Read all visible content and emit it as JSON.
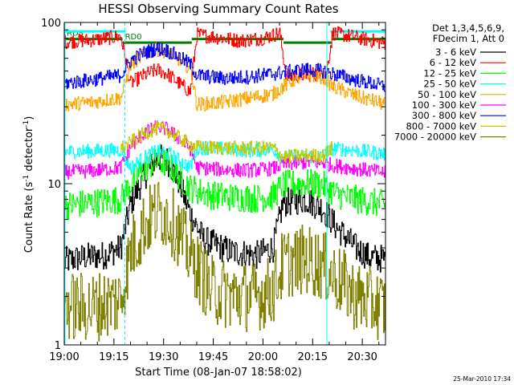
{
  "chart_data": {
    "type": "line",
    "title": "HESSI Observing Summary Count Rates",
    "xlabel": "Start Time (08-Jan-07 18:58:02)",
    "ylabel_main": "Count Rate (s",
    "ylabel_sup1": "-1",
    "ylabel_mid": " detector",
    "ylabel_sup2": "-1",
    "ylabel_end": ")",
    "y_scale": "log",
    "xlim_minutes": [
      0,
      97
    ],
    "ylim": [
      1,
      100
    ],
    "x_tick_labels": [
      "19:00",
      "19:15",
      "19:30",
      "19:45",
      "20:00",
      "20:15",
      "20:30"
    ],
    "x_tick_minutes": [
      0,
      15,
      30,
      45,
      60,
      75,
      90
    ],
    "y_tick_labels": [
      "1",
      "10",
      "100"
    ],
    "y_tick_values": [
      1,
      10,
      100
    ],
    "legend_header": [
      "Det 1,3,4,5,6,9,",
      "FDecim 1, Att 0"
    ],
    "legend_position": "right",
    "flags": [
      {
        "label": "RD0",
        "color": "#008000",
        "level": 75,
        "segments": [
          [
            17.6,
            38.5
          ],
          [
            66.2,
            80.7
          ]
        ]
      },
      {
        "label": "RDS",
        "color": "#008000",
        "level": 79,
        "segments": [
          [
            0,
            17.6
          ],
          [
            38.5,
            66.2
          ],
          [
            80.7,
            97
          ]
        ]
      },
      {
        "label": "",
        "color": "#00ffff",
        "level": 88,
        "segments": [
          [
            0,
            18.5
          ],
          [
            80.4,
            97
          ]
        ]
      }
    ],
    "vertical_markers": {
      "solid": [
        0.2,
        79.3
      ],
      "dashed": [
        18.3,
        97
      ]
    },
    "series": [
      {
        "name": "3 - 6 keV",
        "color": "#000000",
        "values": [
          [
            0,
            3.3
          ],
          [
            6,
            3.5
          ],
          [
            12,
            3.6
          ],
          [
            17,
            4.0
          ],
          [
            20,
            7.5
          ],
          [
            24,
            11
          ],
          [
            28,
            14.5
          ],
          [
            31,
            14
          ],
          [
            34,
            11
          ],
          [
            38,
            6.5
          ],
          [
            42,
            4.5
          ],
          [
            50,
            3.8
          ],
          [
            58,
            3.6
          ],
          [
            63,
            4.0
          ],
          [
            66,
            7.6
          ],
          [
            73,
            8
          ],
          [
            78,
            7
          ],
          [
            82,
            5.4
          ],
          [
            88,
            4
          ],
          [
            92,
            3.5
          ],
          [
            97,
            3.4
          ]
        ]
      },
      {
        "name": "6 - 12 keV",
        "color": "#ff0000",
        "values": [
          [
            0,
            76
          ],
          [
            9,
            78
          ],
          [
            17,
            82
          ],
          [
            20,
            42
          ],
          [
            24,
            47
          ],
          [
            28,
            51
          ],
          [
            31,
            48
          ],
          [
            34,
            43
          ],
          [
            38,
            37
          ],
          [
            40,
            84
          ],
          [
            46,
            81
          ],
          [
            53,
            77
          ],
          [
            60,
            80
          ],
          [
            65,
            86
          ],
          [
            67,
            46
          ],
          [
            75,
            48
          ],
          [
            79,
            47
          ],
          [
            81,
            86
          ],
          [
            88,
            81
          ],
          [
            97,
            74
          ]
        ]
      },
      {
        "name": "12 - 25 keV",
        "color": "#00ff00",
        "values": [
          [
            0,
            7.3
          ],
          [
            8,
            7.6
          ],
          [
            17,
            8.0
          ],
          [
            20,
            10
          ],
          [
            24,
            12.3
          ],
          [
            28,
            13.8
          ],
          [
            31,
            13.3
          ],
          [
            34,
            11.5
          ],
          [
            38,
            9.4
          ],
          [
            44,
            8.5
          ],
          [
            52,
            8.2
          ],
          [
            58,
            8.1
          ],
          [
            63,
            8.4
          ],
          [
            66,
            9.8
          ],
          [
            73,
            10.1
          ],
          [
            78,
            9.8
          ],
          [
            82,
            8.6
          ],
          [
            88,
            8
          ],
          [
            97,
            7.4
          ]
        ]
      },
      {
        "name": "25 - 50 keV",
        "color": "#00ffff",
        "values": [
          [
            0,
            15.8
          ],
          [
            8,
            15.9
          ],
          [
            17,
            16.2
          ],
          [
            20,
            12.5
          ],
          [
            24,
            14.5
          ],
          [
            28,
            16
          ],
          [
            31,
            15.5
          ],
          [
            34,
            14.2
          ],
          [
            38,
            12.6
          ],
          [
            40,
            16.8
          ],
          [
            48,
            16.4
          ],
          [
            56,
            16.1
          ],
          [
            63,
            16.4
          ],
          [
            66,
            14.5
          ],
          [
            73,
            14.8
          ],
          [
            78,
            14.7
          ],
          [
            81,
            16.5
          ],
          [
            88,
            16.1
          ],
          [
            97,
            15.3
          ]
        ]
      },
      {
        "name": "50 - 100 keV",
        "color": "#ffa500",
        "values": [
          [
            0,
            31
          ],
          [
            8,
            32
          ],
          [
            17,
            34
          ],
          [
            20,
            55
          ],
          [
            24,
            63
          ],
          [
            28,
            68
          ],
          [
            31,
            66
          ],
          [
            34,
            60
          ],
          [
            38,
            52
          ],
          [
            40,
            31
          ],
          [
            48,
            32
          ],
          [
            56,
            34
          ],
          [
            63,
            36
          ],
          [
            66,
            40
          ],
          [
            70,
            45
          ],
          [
            74,
            47
          ],
          [
            78,
            46
          ],
          [
            81,
            40
          ],
          [
            88,
            35
          ],
          [
            97,
            31
          ]
        ]
      },
      {
        "name": "100 - 300 keV",
        "color": "#ff00ff",
        "values": [
          [
            0,
            11.8
          ],
          [
            8,
            12
          ],
          [
            17,
            12.6
          ],
          [
            20,
            17
          ],
          [
            24,
            20.5
          ],
          [
            28,
            22.5
          ],
          [
            31,
            21.8
          ],
          [
            34,
            19.5
          ],
          [
            38,
            16.5
          ],
          [
            40,
            12.6
          ],
          [
            48,
            12.2
          ],
          [
            56,
            12.1
          ],
          [
            63,
            12.4
          ],
          [
            66,
            13.2
          ],
          [
            73,
            13.6
          ],
          [
            78,
            13.5
          ],
          [
            81,
            13
          ],
          [
            88,
            12.4
          ],
          [
            97,
            11.7
          ]
        ]
      },
      {
        "name": "300 - 800 keV",
        "color": "#0000ff",
        "values": [
          [
            0,
            42
          ],
          [
            8,
            44
          ],
          [
            17,
            47
          ],
          [
            20,
            58
          ],
          [
            24,
            65
          ],
          [
            28,
            69
          ],
          [
            31,
            67
          ],
          [
            34,
            62
          ],
          [
            38,
            55
          ],
          [
            40,
            47
          ],
          [
            48,
            45
          ],
          [
            56,
            46
          ],
          [
            63,
            48
          ],
          [
            66,
            49
          ],
          [
            73,
            51
          ],
          [
            78,
            50
          ],
          [
            81,
            48
          ],
          [
            88,
            44
          ],
          [
            97,
            40
          ]
        ]
      },
      {
        "name": "800 - 7000 keV",
        "color": "#c8c800",
        "values": [
          [
            17,
            16.5
          ],
          [
            20,
            18
          ],
          [
            24,
            20.5
          ],
          [
            28,
            22
          ],
          [
            31,
            21.4
          ],
          [
            34,
            19.5
          ],
          [
            38,
            17.5
          ],
          [
            40,
            16.8
          ],
          [
            56,
            16.6
          ],
          [
            63,
            16.7
          ],
          [
            66,
            14.6
          ],
          [
            73,
            15
          ],
          [
            78,
            14.9
          ],
          [
            81,
            16.8
          ]
        ]
      },
      {
        "name": "7000 - 20000 keV",
        "color": "#808000",
        "values": [
          [
            0,
            1.75
          ],
          [
            8,
            1.7
          ],
          [
            17,
            1.9
          ],
          [
            20,
            3.8
          ],
          [
            24,
            5.5
          ],
          [
            28,
            6.8
          ],
          [
            31,
            6.4
          ],
          [
            34,
            5.2
          ],
          [
            38,
            3.6
          ],
          [
            44,
            2.2
          ],
          [
            52,
            2.0
          ],
          [
            58,
            2.0
          ],
          [
            63,
            2.2
          ],
          [
            66,
            3.2
          ],
          [
            73,
            3.4
          ],
          [
            78,
            3.1
          ],
          [
            82,
            2.6
          ],
          [
            88,
            2.0
          ],
          [
            97,
            1.7
          ]
        ]
      }
    ]
  },
  "footer": {
    "timestamp": "25-Mar-2010 17:34"
  }
}
